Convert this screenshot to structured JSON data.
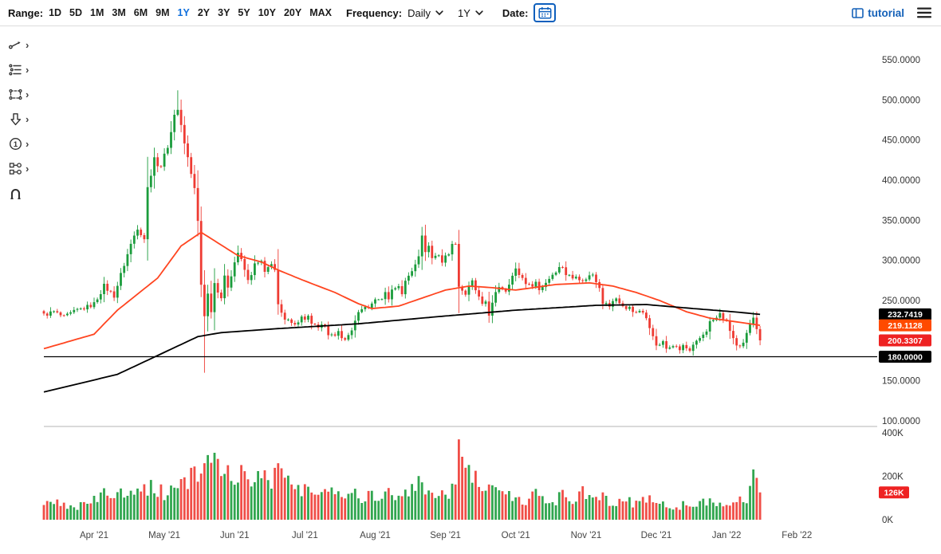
{
  "toolbar": {
    "range_label": "Range:",
    "ranges": [
      "1D",
      "5D",
      "1M",
      "3M",
      "6M",
      "9M",
      "1Y",
      "2Y",
      "3Y",
      "5Y",
      "10Y",
      "20Y",
      "MAX"
    ],
    "active_range": "1Y",
    "frequency_label": "Frequency:",
    "frequency_value": "Daily",
    "period_value": "1Y",
    "date_label": "Date:",
    "tutorial_label": "tutorial",
    "icons": [
      "calendar-icon",
      "tutorial-grid-icon",
      "hamburger-icon",
      "chevron-down-icon"
    ]
  },
  "drawing_tools": [
    {
      "icon": "trendline-icon"
    },
    {
      "icon": "annotation-list-icon"
    },
    {
      "icon": "shape-icon"
    },
    {
      "icon": "arrow-down-icon"
    },
    {
      "icon": "numbered-marker-icon"
    },
    {
      "icon": "pattern-nodes-icon"
    },
    {
      "icon": "magnet-icon"
    }
  ],
  "theme": {
    "accent_blue": "#0e6edc",
    "link_blue": "#1461b8",
    "icon_blue": "#0d5fbd"
  },
  "chart_data": {
    "type": "candlestick",
    "title": "",
    "legend": "none",
    "grid": "off",
    "candle_up_color": "#1b9c3c",
    "candle_down_color": "#ee3b33",
    "x_axis": {
      "labels": [
        "Apr '21",
        "May '21",
        "Jun '21",
        "Jul '21",
        "Aug '21",
        "Sep '21",
        "Oct '21",
        "Nov '21",
        "Dec '21",
        "Jan '22",
        "Feb '22"
      ],
      "label_days": [
        15,
        36,
        57,
        78,
        99,
        120,
        141,
        162,
        183,
        204,
        225
      ],
      "total_days": 249,
      "candle_days": 215
    },
    "y_axis": {
      "ticks": [
        "550.0000",
        "500.0000",
        "450.0000",
        "400.0000",
        "350.0000",
        "300.0000",
        "250.0000",
        "200.0000",
        "150.0000",
        "100.0000"
      ],
      "tick_values": [
        550,
        500,
        450,
        400,
        350,
        300,
        250,
        200,
        150,
        100
      ],
      "range": [
        95,
        585
      ]
    },
    "volume_axis": {
      "ticks": [
        "400K",
        "200K",
        "0K"
      ],
      "tick_values": [
        400,
        200,
        0
      ],
      "max": 400,
      "unit": "K"
    },
    "price_series": {
      "wiggle": 3,
      "last_close": 200.3307,
      "wick_overrides": {
        "40": {
          "high": 512
        },
        "48": {
          "low": 160
        }
      },
      "close_keyframes": [
        [
          0,
          232
        ],
        [
          3,
          236
        ],
        [
          6,
          229
        ],
        [
          10,
          238
        ],
        [
          13,
          242
        ],
        [
          15,
          246
        ],
        [
          18,
          268
        ],
        [
          21,
          256
        ],
        [
          24,
          295
        ],
        [
          26,
          320
        ],
        [
          28,
          342
        ],
        [
          30,
          328
        ],
        [
          31,
          390
        ],
        [
          33,
          430
        ],
        [
          34,
          415
        ],
        [
          36,
          428
        ],
        [
          38,
          462
        ],
        [
          40,
          492
        ],
        [
          41,
          468
        ],
        [
          43,
          428
        ],
        [
          45,
          388
        ],
        [
          46,
          348
        ],
        [
          47,
          270
        ],
        [
          48,
          232
        ],
        [
          49,
          258
        ],
        [
          50,
          238
        ],
        [
          51,
          272
        ],
        [
          53,
          254
        ],
        [
          54,
          278
        ],
        [
          55,
          268
        ],
        [
          57,
          298
        ],
        [
          58,
          310
        ],
        [
          60,
          288
        ],
        [
          61,
          274
        ],
        [
          63,
          294
        ],
        [
          65,
          298
        ],
        [
          66,
          283
        ],
        [
          68,
          298
        ],
        [
          69,
          288
        ],
        [
          70,
          243
        ],
        [
          72,
          224
        ],
        [
          73,
          229
        ],
        [
          75,
          219
        ],
        [
          77,
          229
        ],
        [
          78,
          224
        ],
        [
          79,
          229
        ],
        [
          80,
          222
        ],
        [
          82,
          214
        ],
        [
          84,
          221
        ],
        [
          85,
          209
        ],
        [
          87,
          204
        ],
        [
          88,
          211
        ],
        [
          90,
          200
        ],
        [
          91,
          207
        ],
        [
          92,
          214
        ],
        [
          94,
          233
        ],
        [
          96,
          244
        ],
        [
          97,
          239
        ],
        [
          99,
          253
        ],
        [
          100,
          249
        ],
        [
          102,
          259
        ],
        [
          103,
          254
        ],
        [
          104,
          263
        ],
        [
          106,
          269
        ],
        [
          107,
          259
        ],
        [
          108,
          273
        ],
        [
          110,
          288
        ],
        [
          112,
          308
        ],
        [
          113,
          328
        ],
        [
          114,
          313
        ],
        [
          115,
          318
        ],
        [
          116,
          303
        ],
        [
          118,
          308
        ],
        [
          119,
          298
        ],
        [
          120,
          304
        ],
        [
          122,
          318
        ],
        [
          123,
          324
        ],
        [
          124,
          268
        ],
        [
          126,
          258
        ],
        [
          128,
          273
        ],
        [
          129,
          263
        ],
        [
          131,
          243
        ],
        [
          132,
          249
        ],
        [
          133,
          233
        ],
        [
          135,
          258
        ],
        [
          136,
          268
        ],
        [
          138,
          263
        ],
        [
          139,
          273
        ],
        [
          141,
          288
        ],
        [
          142,
          283
        ],
        [
          143,
          278
        ],
        [
          145,
          268
        ],
        [
          147,
          273
        ],
        [
          148,
          263
        ],
        [
          150,
          273
        ],
        [
          151,
          278
        ],
        [
          153,
          288
        ],
        [
          155,
          293
        ],
        [
          156,
          283
        ],
        [
          158,
          278
        ],
        [
          159,
          283
        ],
        [
          161,
          273
        ],
        [
          162,
          278
        ],
        [
          164,
          283
        ],
        [
          166,
          268
        ],
        [
          167,
          248
        ],
        [
          169,
          243
        ],
        [
          171,
          253
        ],
        [
          172,
          248
        ],
        [
          174,
          238
        ],
        [
          175,
          243
        ],
        [
          177,
          233
        ],
        [
          178,
          238
        ],
        [
          180,
          228
        ],
        [
          182,
          208
        ],
        [
          183,
          193
        ],
        [
          185,
          198
        ],
        [
          186,
          190
        ],
        [
          188,
          194
        ],
        [
          190,
          188
        ],
        [
          191,
          194
        ],
        [
          193,
          186
        ],
        [
          194,
          193
        ],
        [
          196,
          203
        ],
        [
          198,
          213
        ],
        [
          199,
          223
        ],
        [
          201,
          228
        ],
        [
          202,
          233
        ],
        [
          204,
          223
        ],
        [
          205,
          213
        ],
        [
          206,
          203
        ],
        [
          207,
          193
        ],
        [
          208,
          191
        ],
        [
          209,
          196
        ],
        [
          210,
          208
        ],
        [
          211,
          222
        ],
        [
          212,
          231
        ],
        [
          213,
          216
        ],
        [
          214,
          200.3307
        ]
      ]
    },
    "volume_series": {
      "last": 126,
      "keyframes": [
        [
          0,
          65
        ],
        [
          5,
          75
        ],
        [
          10,
          60
        ],
        [
          15,
          85
        ],
        [
          18,
          120
        ],
        [
          21,
          100
        ],
        [
          24,
          130
        ],
        [
          27,
          150
        ],
        [
          30,
          160
        ],
        [
          33,
          140
        ],
        [
          36,
          120
        ],
        [
          39,
          150
        ],
        [
          41,
          170
        ],
        [
          43,
          180
        ],
        [
          45,
          200
        ],
        [
          47,
          240
        ],
        [
          48,
          260
        ],
        [
          50,
          210
        ],
        [
          52,
          280
        ],
        [
          54,
          230
        ],
        [
          56,
          210
        ],
        [
          58,
          230
        ],
        [
          60,
          190
        ],
        [
          62,
          170
        ],
        [
          64,
          200
        ],
        [
          66,
          220
        ],
        [
          68,
          190
        ],
        [
          70,
          260
        ],
        [
          71,
          230
        ],
        [
          73,
          180
        ],
        [
          75,
          140
        ],
        [
          77,
          120
        ],
        [
          79,
          150
        ],
        [
          81,
          130
        ],
        [
          83,
          110
        ],
        [
          85,
          140
        ],
        [
          87,
          150
        ],
        [
          89,
          120
        ],
        [
          91,
          140
        ],
        [
          93,
          120
        ],
        [
          95,
          100
        ],
        [
          97,
          120
        ],
        [
          99,
          110
        ],
        [
          101,
          130
        ],
        [
          103,
          120
        ],
        [
          105,
          110
        ],
        [
          107,
          130
        ],
        [
          109,
          140
        ],
        [
          111,
          150
        ],
        [
          113,
          160
        ],
        [
          115,
          140
        ],
        [
          117,
          130
        ],
        [
          119,
          120
        ],
        [
          121,
          130
        ],
        [
          123,
          140
        ],
        [
          124,
          370
        ],
        [
          125,
          290
        ],
        [
          126,
          240
        ],
        [
          127,
          210
        ],
        [
          128,
          230
        ],
        [
          130,
          190
        ],
        [
          132,
          170
        ],
        [
          134,
          150
        ],
        [
          136,
          130
        ],
        [
          138,
          110
        ],
        [
          140,
          120
        ],
        [
          141,
          100
        ],
        [
          143,
          85
        ],
        [
          145,
          75
        ],
        [
          147,
          130
        ],
        [
          149,
          95
        ],
        [
          151,
          85
        ],
        [
          153,
          90
        ],
        [
          155,
          110
        ],
        [
          157,
          95
        ],
        [
          159,
          100
        ],
        [
          161,
          120
        ],
        [
          163,
          95
        ],
        [
          165,
          85
        ],
        [
          167,
          110
        ],
        [
          169,
          90
        ],
        [
          171,
          85
        ],
        [
          173,
          95
        ],
        [
          175,
          80
        ],
        [
          177,
          70
        ],
        [
          179,
          85
        ],
        [
          181,
          95
        ],
        [
          183,
          85
        ],
        [
          185,
          75
        ],
        [
          187,
          65
        ],
        [
          189,
          60
        ],
        [
          191,
          70
        ],
        [
          193,
          65
        ],
        [
          195,
          75
        ],
        [
          197,
          80
        ],
        [
          199,
          90
        ],
        [
          201,
          85
        ],
        [
          203,
          75
        ],
        [
          205,
          70
        ],
        [
          207,
          85
        ],
        [
          209,
          80
        ],
        [
          211,
          120
        ],
        [
          212,
          195
        ],
        [
          213,
          150
        ],
        [
          214,
          126
        ]
      ]
    },
    "overlays": [
      {
        "name": "ma-fast-line",
        "color": "#ff4520",
        "last": 219.1128,
        "keyframes": [
          [
            0,
            190
          ],
          [
            15,
            208
          ],
          [
            22,
            238
          ],
          [
            34,
            278
          ],
          [
            41,
            318
          ],
          [
            47,
            335
          ],
          [
            58,
            306
          ],
          [
            65,
            298
          ],
          [
            70,
            288
          ],
          [
            77,
            276
          ],
          [
            87,
            260
          ],
          [
            94,
            246
          ],
          [
            98,
            240
          ],
          [
            106,
            243
          ],
          [
            113,
            253
          ],
          [
            120,
            263
          ],
          [
            127,
            268
          ],
          [
            134,
            266
          ],
          [
            141,
            263
          ],
          [
            153,
            270
          ],
          [
            163,
            272
          ],
          [
            170,
            268
          ],
          [
            177,
            260
          ],
          [
            184,
            250
          ],
          [
            192,
            236
          ],
          [
            199,
            228
          ],
          [
            206,
            224
          ],
          [
            214,
            219.1128
          ]
        ]
      },
      {
        "name": "ma-slow-line",
        "color": "#000000",
        "last": 232.7419,
        "keyframes": [
          [
            0,
            136
          ],
          [
            22,
            158
          ],
          [
            46,
            205
          ],
          [
            53,
            210
          ],
          [
            70,
            215
          ],
          [
            94,
            221
          ],
          [
            118,
            230
          ],
          [
            141,
            238
          ],
          [
            165,
            244
          ],
          [
            180,
            245
          ],
          [
            194,
            240
          ],
          [
            206,
            236
          ],
          [
            214,
            232.7419
          ]
        ]
      }
    ],
    "drawings": [
      {
        "type": "horizontal-line",
        "value": 180.0,
        "color": "#000000"
      }
    ],
    "badges": [
      {
        "text": "232.7419",
        "value": 232.7419,
        "bg": "#000000",
        "pane": "price"
      },
      {
        "text": "219.1128",
        "value": 219.1128,
        "bg": "#ff4a00",
        "pane": "price"
      },
      {
        "text": "200.3307",
        "value": 200.3307,
        "bg": "#ee2222",
        "pane": "price"
      },
      {
        "text": "180.0000",
        "value": 180.0,
        "bg": "#000000",
        "pane": "price"
      },
      {
        "text": "126K",
        "value": 126,
        "bg": "#ee2222",
        "pane": "volume"
      }
    ]
  }
}
